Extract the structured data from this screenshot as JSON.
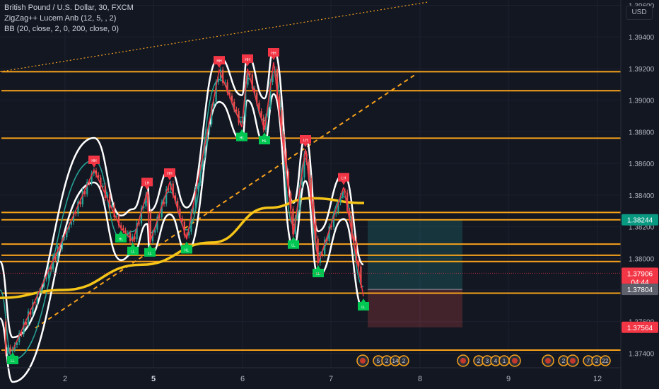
{
  "legend": {
    "symbol": "British Pound / U.S. Dollar, 30, FXCM",
    "indicator1": "ZigZag++ Lucem Anb (12, 5, , 2)",
    "indicator2": "BB (20, close, 2, 0, 200, close, 0)"
  },
  "currency": "USD",
  "colors": {
    "background": "#131722",
    "level_line": "#f7a21b",
    "bb_band": "#ffffff",
    "basis": "#26a69a",
    "ma200": "#f5c518",
    "zigzag": "#f23645",
    "high_label": "#f23645",
    "low_label": "#00c853",
    "price_up": "#26a69a",
    "price_down": "#ef5350"
  },
  "chart_data": {
    "type": "candlestick",
    "title": "British Pound / U.S. Dollar, 30, FXCM",
    "y_ticks": [
      "1.39600",
      "1.39400",
      "1.39200",
      "1.39000",
      "1.38800",
      "1.38600",
      "1.38400",
      "1.38200",
      "1.38000",
      "1.37800",
      "1.37600",
      "1.37400"
    ],
    "x_ticks": [
      "2",
      "5",
      "6",
      "7",
      "8",
      "9",
      "12"
    ],
    "x_ticks_bold": [
      "5"
    ],
    "ylim": [
      1.3736,
      1.3962
    ],
    "price_labels": [
      {
        "text": "1.38244",
        "value": 1.38244,
        "color": "#089981"
      },
      {
        "text": "1.37906",
        "value": 1.37906,
        "color": "#f23645",
        "sub": "04:44"
      },
      {
        "text": "1.37804",
        "value": 1.37804,
        "color": "#5d606b"
      },
      {
        "text": "1.37564",
        "value": 1.37564,
        "color": "#f23645"
      }
    ],
    "horizontal_levels": [
      1.3918,
      1.3906,
      1.3876,
      1.3829,
      1.38244,
      1.3809,
      1.3802,
      1.3798,
      1.3778,
      1.3742
    ],
    "trend_lines": [
      {
        "style": "dotted",
        "from": [
          0,
          1.3918
        ],
        "to": [
          605,
          1.3962
        ]
      },
      {
        "style": "dashed",
        "from": [
          50,
          1.3756
        ],
        "to": [
          590,
          1.3917
        ]
      }
    ],
    "position_box": {
      "entry": 1.37804,
      "target": 1.38244,
      "stop": 1.37564
    },
    "zigzag_labels": [
      {
        "x": 18,
        "y": 1.3742,
        "kind": "LL"
      },
      {
        "x": 133,
        "y": 1.3856,
        "kind": "HH"
      },
      {
        "x": 171,
        "y": 1.3819,
        "kind": "HL"
      },
      {
        "x": 188,
        "y": 1.3811,
        "kind": "LL"
      },
      {
        "x": 208,
        "y": 1.3842,
        "kind": "LH"
      },
      {
        "x": 212,
        "y": 1.381,
        "kind": "LL"
      },
      {
        "x": 240,
        "y": 1.3848,
        "kind": "HH"
      },
      {
        "x": 264,
        "y": 1.3812,
        "kind": "HL"
      },
      {
        "x": 310,
        "y": 1.3919,
        "kind": "HH"
      },
      {
        "x": 342,
        "y": 1.3883,
        "kind": "HL"
      },
      {
        "x": 350,
        "y": 1.392,
        "kind": "HH"
      },
      {
        "x": 374,
        "y": 1.3881,
        "kind": "HL"
      },
      {
        "x": 387,
        "y": 1.3924,
        "kind": "HH"
      },
      {
        "x": 415,
        "y": 1.3815,
        "kind": "LL"
      },
      {
        "x": 432,
        "y": 1.3869,
        "kind": "LH"
      },
      {
        "x": 450,
        "y": 1.3797,
        "kind": "LL"
      },
      {
        "x": 486,
        "y": 1.3845,
        "kind": "LH"
      },
      {
        "x": 514,
        "y": 1.3776,
        "kind": "LL"
      }
    ],
    "event_groups": [
      {
        "x": 513,
        "labels": [
          "5",
          "2",
          "14",
          "2"
        ]
      },
      {
        "x": 655,
        "labels": [
          "2",
          "3",
          "4",
          "1"
        ]
      },
      {
        "x": 728,
        "labels": []
      },
      {
        "x": 775,
        "labels": [
          "2"
        ]
      },
      {
        "x": 810,
        "labels": [
          "7",
          "2",
          "22"
        ]
      }
    ]
  }
}
